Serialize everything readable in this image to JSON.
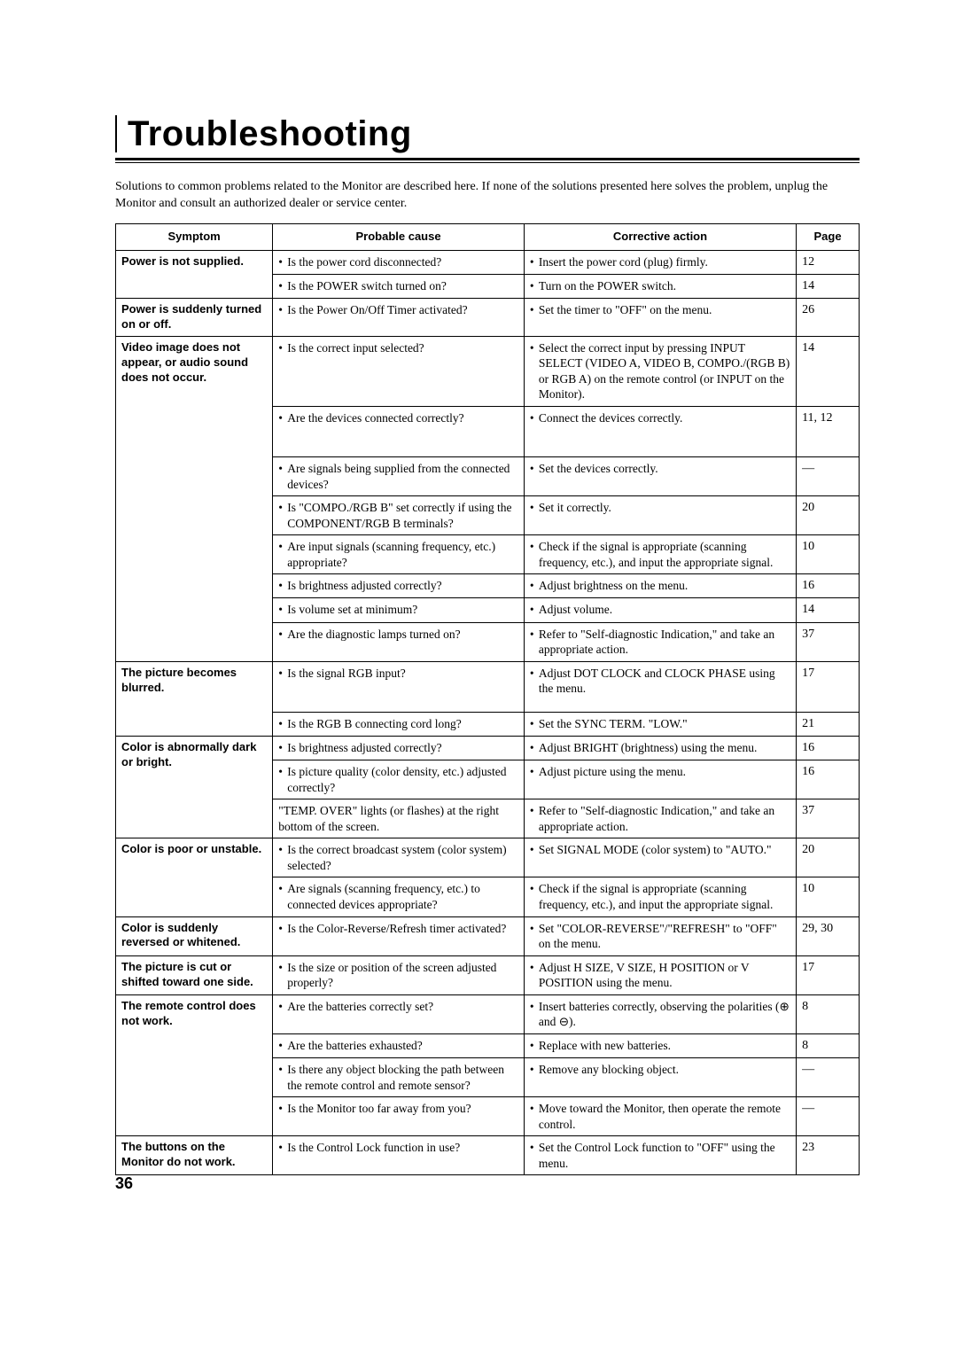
{
  "title": "Troubleshooting",
  "intro": "Solutions to common problems related to the Monitor are described here. If none of the solutions presented here solves the problem, unplug the Monitor and consult an authorized dealer or service center.",
  "page_number": "36",
  "headers": {
    "symptom": "Symptom",
    "cause": "Probable cause",
    "action": "Corrective action",
    "page": "Page"
  },
  "rows": [
    {
      "symptom": "Power is not supplied.",
      "sym_rowspan": 2,
      "cause": "Is the power cord disconnected?",
      "action": "Insert the power cord (plug) firmly.",
      "page": "12"
    },
    {
      "cause": "Is the POWER switch turned on?",
      "action": "Turn on the POWER switch.",
      "page": "14"
    },
    {
      "symptom": "Power is suddenly turned on or off.",
      "sym_rowspan": 1,
      "cause": "Is the Power On/Off Timer activated?",
      "action": "Set the timer to \"OFF\" on the menu.",
      "page": "26"
    },
    {
      "symptom": "Video image does not appear, or audio sound does not occur.",
      "sym_rowspan": 8,
      "cause": "Is the correct input selected?",
      "action": "Select the correct input by pressing INPUT SELECT (VIDEO A, VIDEO B, COMPO./(RGB B) or RGB A) on the remote control (or INPUT on the Monitor).",
      "page": "14"
    },
    {
      "cause": "Are the devices connected correctly?",
      "action": "Connect the devices correctly.",
      "page": "11, 12",
      "tall": true
    },
    {
      "cause": "Are signals being supplied from the connected devices?",
      "action": "Set the devices correctly.",
      "page": "—"
    },
    {
      "cause": "Is \"COMPO./RGB B\" set correctly if using the COMPONENT/RGB B terminals?",
      "action": "Set it correctly.",
      "page": "20"
    },
    {
      "cause": "Are input signals (scanning frequency, etc.) appropriate?",
      "action": "Check if the signal is appropriate (scanning frequency, etc.), and input the appropriate signal.",
      "page": "10"
    },
    {
      "cause": "Is brightness adjusted correctly?",
      "action": "Adjust brightness on the menu.",
      "page": "16"
    },
    {
      "cause": "Is volume set at minimum?",
      "action": "Adjust volume.",
      "page": "14"
    },
    {
      "cause": "Are the diagnostic lamps turned on?",
      "action": "Refer to \"Self-diagnostic Indication,\" and take an appropriate action.",
      "page": "37"
    },
    {
      "symptom": "The picture becomes blurred.",
      "sym_rowspan": 2,
      "cause": "Is the signal RGB input?",
      "action": "Adjust DOT CLOCK and CLOCK PHASE using the menu.",
      "page": "17",
      "tall": true
    },
    {
      "cause": "Is the RGB B connecting cord long?",
      "action": "Set the SYNC TERM. \"LOW.\"",
      "page": "21"
    },
    {
      "symptom": "Color is abnormally dark or bright.",
      "sym_rowspan": 3,
      "cause": "Is brightness adjusted correctly?",
      "action": "Adjust BRIGHT (brightness) using the menu.",
      "page": "16"
    },
    {
      "cause": "Is picture quality (color density, etc.) adjusted correctly?",
      "action": "Adjust picture using the menu.",
      "page": "16"
    },
    {
      "cause": "\"TEMP. OVER\" lights (or flashes) at the right bottom of the screen.",
      "cause_nobullet": true,
      "action": "Refer to \"Self-diagnostic Indication,\" and take an appropriate action.",
      "page": "37"
    },
    {
      "symptom": "Color is poor or unstable.",
      "sym_rowspan": 2,
      "cause": "Is the correct broadcast system (color system) selected?",
      "action": "Set SIGNAL MODE (color system) to \"AUTO.\"",
      "page": "20"
    },
    {
      "cause": "Are signals (scanning frequency, etc.) to connected devices appropriate?",
      "action": "Check if the signal is appropriate (scanning frequency, etc.), and input the appropriate signal.",
      "page": "10"
    },
    {
      "symptom": "Color is suddenly reversed or whitened.",
      "sym_rowspan": 1,
      "cause": "Is the Color-Reverse/Refresh timer activated?",
      "action": "Set \"COLOR-REVERSE\"/\"REFRESH\" to \"OFF\" on the menu.",
      "page": "29, 30"
    },
    {
      "symptom": "The picture is cut or shifted toward one side.",
      "sym_rowspan": 1,
      "cause": "Is the size or position of the screen adjusted properly?",
      "action": "Adjust H SIZE, V SIZE, H POSITION or V POSITION using the menu.",
      "page": "17"
    },
    {
      "symptom": "The remote control does not work.",
      "sym_rowspan": 4,
      "cause": "Are the batteries correctly set?",
      "action": "Insert batteries correctly, observing the polarities (⊕ and ⊖).",
      "page": "8"
    },
    {
      "cause": "Are the batteries exhausted?",
      "action": "Replace with new batteries.",
      "page": "8"
    },
    {
      "cause": "Is there any object blocking the path between the remote control and remote sensor?",
      "action": "Remove any blocking object.",
      "page": "—"
    },
    {
      "cause": "Is the Monitor too far away from you?",
      "action": "Move toward the Monitor, then operate the remote control.",
      "page": "—"
    },
    {
      "symptom": "The buttons on the Monitor do not work.",
      "sym_rowspan": 1,
      "cause": "Is the Control Lock function in use?",
      "action": "Set the Control Lock function to \"OFF\" using the menu.",
      "page": "23"
    }
  ]
}
